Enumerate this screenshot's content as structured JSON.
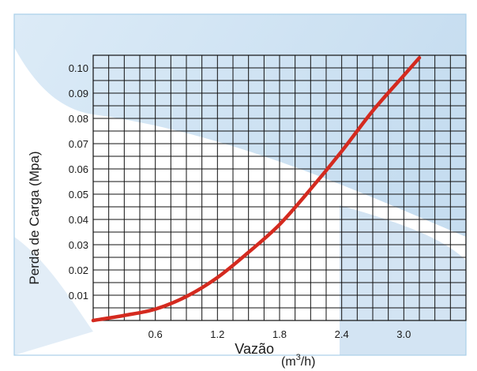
{
  "chart_data": {
    "type": "line",
    "title": "",
    "xlabel": "Vazão",
    "xlabel_unit_prefix": "(m",
    "xlabel_unit_sup": "3",
    "xlabel_unit_suffix": "/h)",
    "ylabel": "Perda de Carga (Mpa)",
    "xlim": [
      0,
      3.6
    ],
    "ylim": [
      0,
      0.105
    ],
    "x_ticks": [
      {
        "value": 0.6,
        "label": "0.6"
      },
      {
        "value": 1.2,
        "label": "1.2"
      },
      {
        "value": 1.8,
        "label": "1.8"
      },
      {
        "value": 2.4,
        "label": "2.4"
      },
      {
        "value": 3.0,
        "label": "3.0"
      }
    ],
    "y_ticks": [
      {
        "value": 0.01,
        "label": "0.01"
      },
      {
        "value": 0.02,
        "label": "0.02"
      },
      {
        "value": 0.03,
        "label": "0.03"
      },
      {
        "value": 0.04,
        "label": "0.04"
      },
      {
        "value": 0.05,
        "label": "0.05"
      },
      {
        "value": 0.06,
        "label": "0.06"
      },
      {
        "value": 0.07,
        "label": "0.07"
      },
      {
        "value": 0.08,
        "label": "0.08"
      },
      {
        "value": 0.09,
        "label": "0.09"
      },
      {
        "value": 0.1,
        "label": "0.10"
      }
    ],
    "grid": true,
    "grid_step_x": 0.15,
    "grid_step_y": 0.005,
    "series": [
      {
        "color": "#d42a1f",
        "x": [
          0.0,
          0.3,
          0.6,
          0.9,
          1.2,
          1.5,
          1.8,
          2.1,
          2.4,
          2.7,
          3.0,
          3.15
        ],
        "y": [
          0.0,
          0.002,
          0.0045,
          0.0095,
          0.017,
          0.027,
          0.038,
          0.052,
          0.067,
          0.083,
          0.097,
          0.104
        ]
      }
    ]
  },
  "colors": {
    "panel_border": "#a9cfe8",
    "band_blue": "#cfe3f3",
    "grid": "#111111"
  }
}
